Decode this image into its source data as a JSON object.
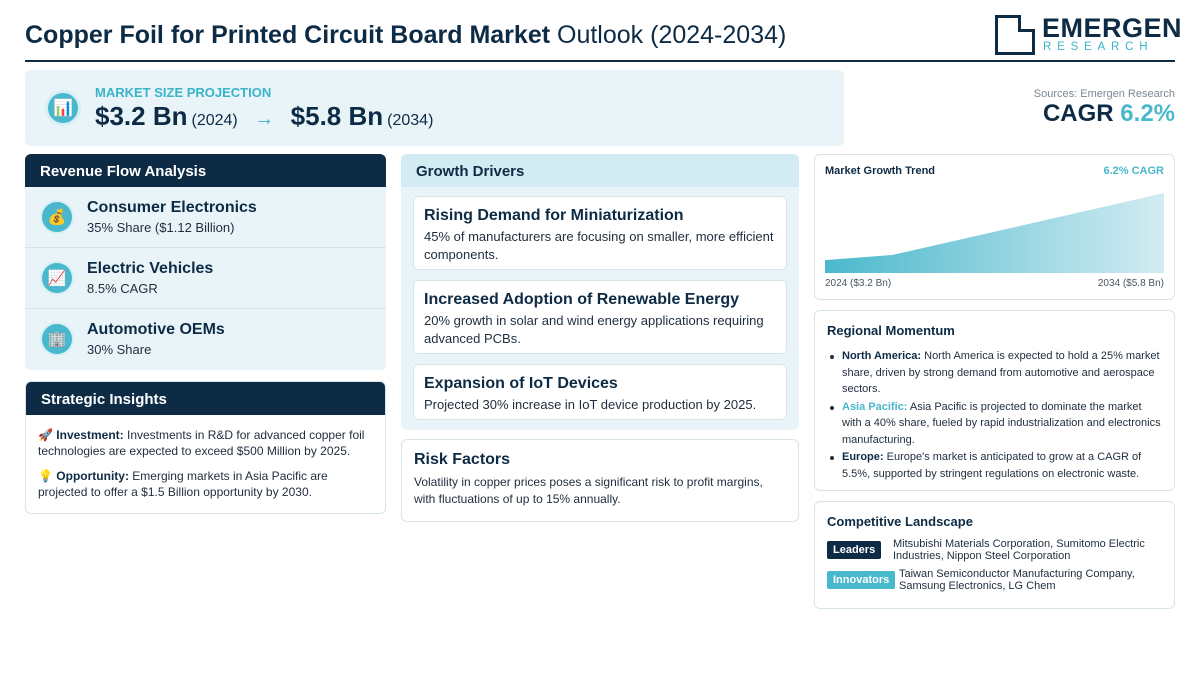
{
  "header": {
    "title_strong": "Copper Foil for Printed Circuit Board Market",
    "title_light": "Outlook (2024-2034)",
    "logo_main": "EMERGEN",
    "logo_sub": "RESEARCH"
  },
  "projection": {
    "icon": "bar-chart-icon",
    "label": "MARKET SIZE PROJECTION",
    "start_value": "$3.2 Bn",
    "start_year": "(2024)",
    "arrow": "→",
    "end_value": "$5.8 Bn",
    "end_year": "(2034)"
  },
  "summary": {
    "sources": "Sources: Emergen Research",
    "cagr_label": "CAGR",
    "cagr_value": "6.2%"
  },
  "revenue_flow": {
    "title": "Revenue Flow Analysis",
    "items": [
      {
        "icon": "money-bag-icon",
        "glyph": "💰",
        "title": "Consumer Electronics",
        "sub": "35% Share ($1.12 Billion)"
      },
      {
        "icon": "trending-up-icon",
        "glyph": "📈",
        "title": "Electric Vehicles",
        "sub": "8.5% CAGR"
      },
      {
        "icon": "building-icon",
        "glyph": "🏢",
        "title": "Automotive OEMs",
        "sub": "30% Share"
      }
    ]
  },
  "strategic": {
    "title": "Strategic Insights",
    "investment_glyph": "🚀",
    "investment_label": "Investment:",
    "investment_text": "Investments in R&D for advanced copper foil technologies are expected to exceed $500 Million by 2025.",
    "opportunity_glyph": "💡",
    "opportunity_label": "Opportunity:",
    "opportunity_text": "Emerging markets in Asia Pacific are projected to offer a $1.5 Billion opportunity by 2030."
  },
  "growth_drivers": {
    "title": "Growth Drivers",
    "items": [
      {
        "title": "Rising Demand for Miniaturization",
        "text": "45% of manufacturers are focusing on smaller, more efficient components."
      },
      {
        "title": "Increased Adoption of Renewable Energy",
        "text": "20% growth in solar and wind energy applications requiring advanced PCBs."
      },
      {
        "title": "Expansion of IoT Devices",
        "text": "Projected 30% increase in IoT device production by 2025."
      }
    ]
  },
  "risk": {
    "title": "Risk Factors",
    "text": "Volatility in copper prices poses a significant risk to profit margins, with fluctuations of up to 15% annually."
  },
  "trend": {
    "title": "Market Growth Trend",
    "cagr": "6.2% CAGR",
    "start_label": "2024 ($3.2 Bn)",
    "end_label": "2034 ($5.8 Bn)"
  },
  "chart_data": {
    "type": "area",
    "x": [
      2024,
      2026,
      2030,
      2034
    ],
    "values": [
      3.2,
      3.4,
      4.6,
      5.8
    ],
    "title": "Market Growth Trend",
    "ylim": [
      2.7,
      5.8
    ],
    "grid": false
  },
  "regional": {
    "title": "Regional Momentum",
    "items": [
      {
        "name": "North America:",
        "text": "North America is expected to hold a 25% market share, driven by strong demand from automotive and aerospace sectors."
      },
      {
        "name": "Asia Pacific:",
        "text": "Asia Pacific is projected to dominate the market with a 40% share, fueled by rapid industrialization and electronics manufacturing."
      },
      {
        "name": "Europe:",
        "text": "Europe's market is anticipated to grow at a CAGR of 5.5%, supported by stringent regulations on electronic waste."
      }
    ]
  },
  "competitive": {
    "title": "Competitive Landscape",
    "leaders_label": "Leaders",
    "leaders_text": "Mitsubishi Materials Corporation, Sumitomo Electric Industries, Nippon Steel Corporation",
    "innovators_label": "Innovators",
    "innovators_text": "Taiwan Semiconductor Manufacturing Company, Samsung Electronics, LG Chem"
  },
  "colors": {
    "navy": "#0d2b45",
    "teal": "#4ab8cc",
    "panel": "#e8f4f8"
  }
}
